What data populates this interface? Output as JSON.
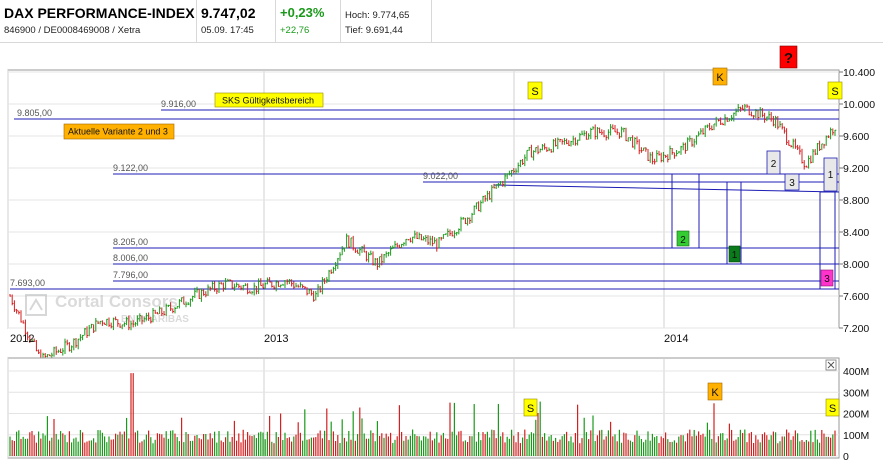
{
  "header": {
    "index_name": "DAX PERFORMANCE-INDEX",
    "identifiers": "846900 / DE0008469008 / Xetra",
    "price": "9.747,02",
    "timestamp": "05.09. 17:45",
    "change_pct": "+0,23%",
    "change_abs": "+22,76",
    "high": "Hoch: 9.774,65",
    "low": "Tief: 9.691,44"
  },
  "annotations": {
    "question_box": "?",
    "sks_label": "SKS Gültigkeitsbereich",
    "variant_label": "Aktuelle Variante 2 und 3",
    "watermark_line1": "Cortal Consors",
    "watermark_line2": "BNP PARIBAS",
    "markers": [
      "S",
      "K",
      "S"
    ],
    "volume_markers": [
      "S",
      "K",
      "S"
    ],
    "wave_labels": [
      "2",
      "3",
      "1",
      "2",
      "1",
      "3"
    ]
  },
  "colors": {
    "up": "#1a9a1a",
    "down": "#d32020",
    "level_line": "#1c1cb4",
    "yellow_box": "#ffff00",
    "orange_box": "#ffb000",
    "red_box": "#ff0000",
    "green_box": "#33cc33",
    "dark_green_box": "#0a7a1a",
    "magenta_box": "#ff33cc"
  },
  "chart_data": [
    {
      "type": "line",
      "title": "",
      "style": "ohlc-bars",
      "x_ticks": [
        "2012",
        "2013",
        "2014"
      ],
      "y_ticks": [
        "7.200",
        "7.600",
        "8.000",
        "8.400",
        "8.800",
        "9.200",
        "9.600",
        "10.000",
        "10.400"
      ],
      "ylim": [
        7200,
        10400
      ],
      "grid": true,
      "levels": [
        {
          "label": "9.916,00",
          "value": 9916
        },
        {
          "label": "9.805,00",
          "value": 9805
        },
        {
          "label": "9.122,00",
          "value": 9122
        },
        {
          "label": "9.022,00",
          "value": 9022
        },
        {
          "label": "8.205,00",
          "value": 8205
        },
        {
          "label": "8.006,00",
          "value": 8006
        },
        {
          "label": "7.796,00",
          "value": 7796
        },
        {
          "label": "7.693,00",
          "value": 7693
        }
      ],
      "series": [
        {
          "x": [
            "2012-06",
            "2012-07",
            "2012-08",
            "2012-09",
            "2012-10",
            "2012-11",
            "2012-12",
            "2013-01",
            "2013-02",
            "2013-03",
            "2013-04",
            "2013-05",
            "2013-06",
            "2013-07",
            "2013-08",
            "2013-09",
            "2013-10",
            "2013-11",
            "2013-12",
            "2014-01",
            "2014-02",
            "2014-03",
            "2014-04",
            "2014-05",
            "2014-06",
            "2014-07",
            "2014-08",
            "2014-09"
          ],
          "values": [
            7600,
            6800,
            7000,
            7300,
            7250,
            7400,
            7600,
            7750,
            7700,
            7800,
            7600,
            8300,
            8000,
            8350,
            8250,
            8600,
            9000,
            9400,
            9500,
            9650,
            9650,
            9300,
            9450,
            9750,
            9950,
            9800,
            9250,
            9747
          ]
        }
      ]
    },
    {
      "type": "bar",
      "title": "",
      "y_ticks": [
        "0",
        "100M",
        "200M",
        "300M",
        "400M"
      ],
      "ylim": [
        0,
        400000000
      ]
    }
  ]
}
